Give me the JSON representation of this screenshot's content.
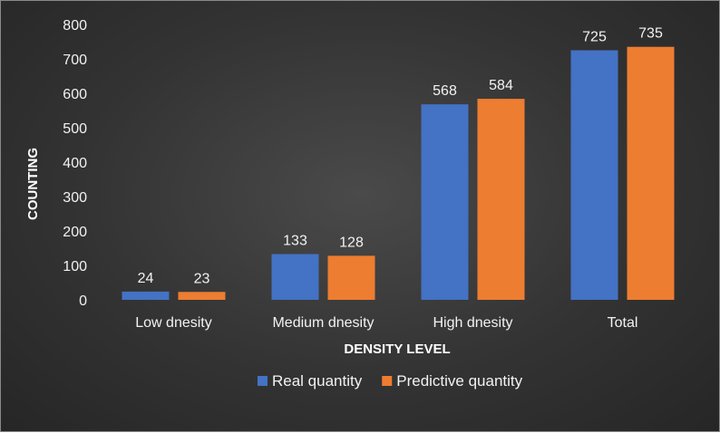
{
  "chart_data": {
    "type": "bar",
    "categories": [
      "Low dnesity",
      "Medium dnesity",
      "High dnesity",
      "Total"
    ],
    "series": [
      {
        "name": "Real quantity",
        "values": [
          24,
          133,
          568,
          725
        ],
        "color": "#4472c4"
      },
      {
        "name": "Predictive quantity",
        "values": [
          23,
          128,
          584,
          735
        ],
        "color": "#ed7d31"
      }
    ],
    "xlabel": "DENSITY LEVEL",
    "ylabel": "COUNTING",
    "ylim": [
      0,
      800
    ],
    "yticks": [
      0,
      100,
      200,
      300,
      400,
      500,
      600,
      700,
      800
    ],
    "grid": false,
    "legend_position": "bottom",
    "data_labels": true
  }
}
